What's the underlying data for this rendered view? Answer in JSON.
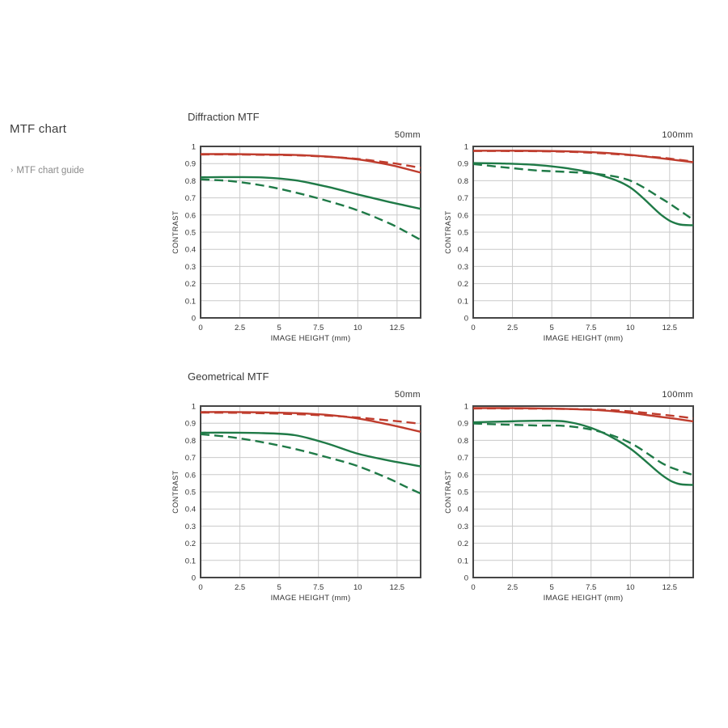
{
  "sidebar": {
    "title": "MTF chart",
    "link": {
      "arrow": "›",
      "label": "MTF chart guide"
    }
  },
  "sections": [
    {
      "title": "Diffraction MTF"
    },
    {
      "title": "Geometrical MTF"
    }
  ],
  "colors": {
    "red": "#bf3c2d",
    "green": "#1f7a47",
    "grid": "#cacaca",
    "border": "#454545",
    "tick_text": "#333333"
  },
  "chart_data": [
    {
      "type": "line",
      "group": "Diffraction MTF",
      "title": "50mm",
      "xlabel": "IMAGE HEIGHT (mm)",
      "ylabel": "CONTRAST",
      "xlim": [
        0,
        14
      ],
      "ylim": [
        0,
        1
      ],
      "xticks": [
        0,
        2.5,
        5,
        7.5,
        10,
        12.5
      ],
      "yticks": [
        0,
        0.1,
        0.2,
        0.3,
        0.4,
        0.5,
        0.6,
        0.7,
        0.8,
        0.9,
        1
      ],
      "grid": true,
      "legend": "none",
      "x": [
        0,
        2,
        4,
        6,
        8,
        10,
        12,
        13,
        14
      ],
      "series": [
        {
          "name": "red-solid",
          "color": "#bf3c2d",
          "dash": false,
          "values": [
            0.955,
            0.955,
            0.953,
            0.95,
            0.941,
            0.924,
            0.893,
            0.871,
            0.847
          ]
        },
        {
          "name": "red-dashed",
          "color": "#bf3c2d",
          "dash": true,
          "values": [
            0.953,
            0.953,
            0.951,
            0.948,
            0.94,
            0.927,
            0.905,
            0.891,
            0.875
          ]
        },
        {
          "name": "green-solid",
          "color": "#1f7a47",
          "dash": false,
          "values": [
            0.82,
            0.821,
            0.819,
            0.803,
            0.766,
            0.72,
            0.676,
            0.656,
            0.636
          ]
        },
        {
          "name": "green-dashed",
          "color": "#1f7a47",
          "dash": true,
          "values": [
            0.808,
            0.797,
            0.771,
            0.732,
            0.684,
            0.627,
            0.552,
            0.505,
            0.455
          ]
        }
      ]
    },
    {
      "type": "line",
      "group": "Diffraction MTF",
      "title": "100mm",
      "xlabel": "IMAGE HEIGHT (mm)",
      "ylabel": "CONTRAST",
      "xlim": [
        0,
        14
      ],
      "ylim": [
        0,
        1
      ],
      "xticks": [
        0,
        2.5,
        5,
        7.5,
        10,
        12.5
      ],
      "yticks": [
        0,
        0.1,
        0.2,
        0.3,
        0.4,
        0.5,
        0.6,
        0.7,
        0.8,
        0.9,
        1
      ],
      "grid": true,
      "legend": "none",
      "x": [
        0,
        2,
        4,
        6,
        8,
        10,
        12,
        13,
        14
      ],
      "series": [
        {
          "name": "red-solid",
          "color": "#bf3c2d",
          "dash": false,
          "values": [
            0.975,
            0.975,
            0.974,
            0.971,
            0.964,
            0.951,
            0.93,
            0.919,
            0.908
          ]
        },
        {
          "name": "red-dashed",
          "color": "#bf3c2d",
          "dash": true,
          "values": [
            0.973,
            0.973,
            0.972,
            0.969,
            0.961,
            0.949,
            0.934,
            0.923,
            0.911
          ]
        },
        {
          "name": "green-solid",
          "color": "#1f7a47",
          "dash": false,
          "values": [
            0.903,
            0.9,
            0.892,
            0.872,
            0.835,
            0.76,
            0.598,
            0.548,
            0.54
          ]
        },
        {
          "name": "green-dashed",
          "color": "#1f7a47",
          "dash": true,
          "values": [
            0.897,
            0.878,
            0.86,
            0.851,
            0.838,
            0.8,
            0.695,
            0.635,
            0.572
          ]
        }
      ]
    },
    {
      "type": "line",
      "group": "Geometrical MTF",
      "title": "50mm",
      "xlabel": "IMAGE HEIGHT (mm)",
      "ylabel": "CONTRAST",
      "xlim": [
        0,
        14
      ],
      "ylim": [
        0,
        1
      ],
      "xticks": [
        0,
        2.5,
        5,
        7.5,
        10,
        12.5
      ],
      "yticks": [
        0,
        0.1,
        0.2,
        0.3,
        0.4,
        0.5,
        0.6,
        0.7,
        0.8,
        0.9,
        1
      ],
      "grid": true,
      "legend": "none",
      "x": [
        0,
        2,
        4,
        6,
        8,
        10,
        12,
        13,
        14
      ],
      "series": [
        {
          "name": "red-solid",
          "color": "#bf3c2d",
          "dash": false,
          "values": [
            0.965,
            0.965,
            0.963,
            0.959,
            0.949,
            0.928,
            0.892,
            0.871,
            0.85
          ]
        },
        {
          "name": "red-dashed",
          "color": "#bf3c2d",
          "dash": true,
          "values": [
            0.962,
            0.961,
            0.958,
            0.953,
            0.945,
            0.933,
            0.916,
            0.907,
            0.897
          ]
        },
        {
          "name": "green-solid",
          "color": "#1f7a47",
          "dash": false,
          "values": [
            0.845,
            0.845,
            0.842,
            0.83,
            0.783,
            0.722,
            0.682,
            0.665,
            0.648
          ]
        },
        {
          "name": "green-dashed",
          "color": "#1f7a47",
          "dash": true,
          "values": [
            0.836,
            0.818,
            0.788,
            0.75,
            0.703,
            0.65,
            0.576,
            0.532,
            0.49
          ]
        }
      ]
    },
    {
      "type": "line",
      "group": "Geometrical MTF",
      "title": "100mm",
      "xlabel": "IMAGE HEIGHT (mm)",
      "ylabel": "CONTRAST",
      "xlim": [
        0,
        14
      ],
      "ylim": [
        0,
        1
      ],
      "xticks": [
        0,
        2.5,
        5,
        7.5,
        10,
        12.5
      ],
      "yticks": [
        0,
        0.1,
        0.2,
        0.3,
        0.4,
        0.5,
        0.6,
        0.7,
        0.8,
        0.9,
        1
      ],
      "grid": true,
      "legend": "none",
      "x": [
        0,
        2,
        4,
        6,
        8,
        10,
        12,
        13,
        14
      ],
      "series": [
        {
          "name": "red-solid",
          "color": "#bf3c2d",
          "dash": false,
          "values": [
            0.988,
            0.988,
            0.987,
            0.983,
            0.976,
            0.96,
            0.936,
            0.924,
            0.911
          ]
        },
        {
          "name": "red-dashed",
          "color": "#bf3c2d",
          "dash": true,
          "values": [
            0.986,
            0.986,
            0.985,
            0.983,
            0.979,
            0.969,
            0.95,
            0.94,
            0.929
          ]
        },
        {
          "name": "green-solid",
          "color": "#1f7a47",
          "dash": false,
          "values": [
            0.905,
            0.91,
            0.914,
            0.908,
            0.855,
            0.752,
            0.598,
            0.548,
            0.54
          ]
        },
        {
          "name": "green-dashed",
          "color": "#1f7a47",
          "dash": true,
          "values": [
            0.898,
            0.892,
            0.887,
            0.883,
            0.852,
            0.785,
            0.668,
            0.628,
            0.598
          ]
        }
      ]
    }
  ]
}
